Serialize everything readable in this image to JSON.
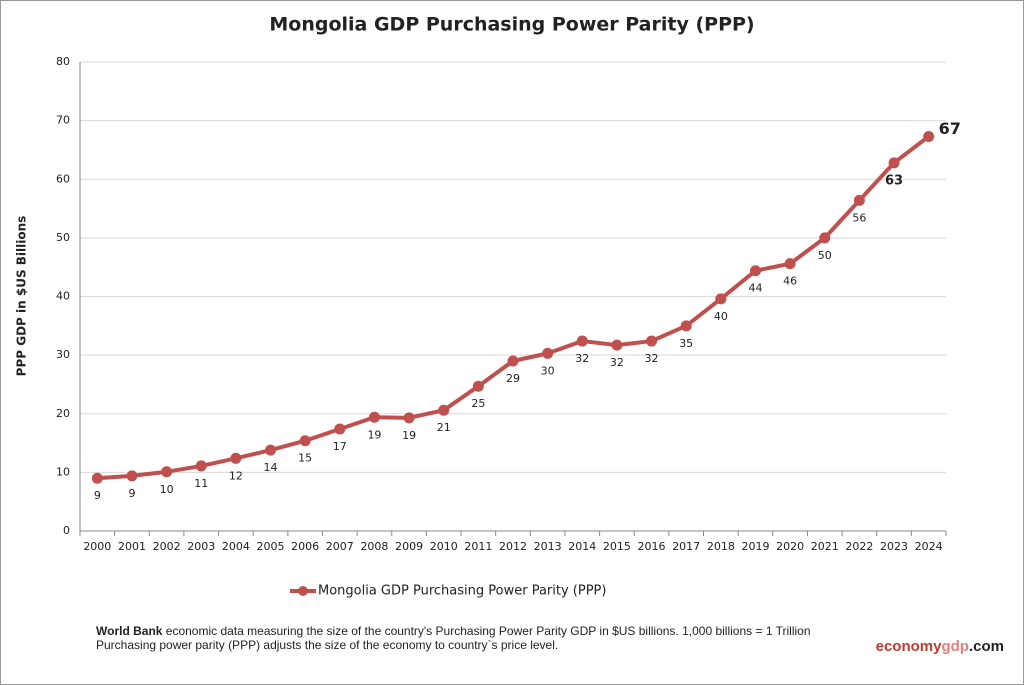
{
  "chart_data": {
    "type": "line",
    "title": "Mongolia GDP Purchasing Power Parity (PPP)",
    "y_label": "PPP GDP in $US Billions",
    "categories": [
      "2000",
      "2001",
      "2002",
      "2003",
      "2004",
      "2005",
      "2006",
      "2007",
      "2008",
      "2009",
      "2010",
      "2011",
      "2012",
      "2013",
      "2014",
      "2015",
      "2016",
      "2017",
      "2018",
      "2019",
      "2020",
      "2021",
      "2022",
      "2023",
      "2024"
    ],
    "series": [
      {
        "name": "Mongolia GDP Purchasing Power Parity (PPP)",
        "color": "#c0504d",
        "values": [
          9.0,
          9.4,
          10.1,
          11.1,
          12.4,
          13.8,
          15.4,
          17.4,
          19.4,
          19.3,
          20.6,
          24.7,
          29.0,
          30.3,
          32.4,
          31.7,
          32.4,
          35.0,
          39.6,
          44.4,
          45.6,
          50.0,
          56.4,
          62.8,
          67.3
        ],
        "value_labels": [
          "9",
          "9",
          "10",
          "11",
          "12",
          "14",
          "15",
          "17",
          "19",
          "19",
          "21",
          "25",
          "29",
          "30",
          "32",
          "32",
          "32",
          "35",
          "40",
          "44",
          "46",
          "50",
          "56",
          "63",
          "67"
        ]
      }
    ],
    "ylim": [
      0,
      80
    ],
    "yticks": [
      0,
      10,
      20,
      30,
      40,
      50,
      60,
      70,
      80
    ],
    "grid": true,
    "legend": "bottom",
    "footer": {
      "source": "World Bank",
      "line1": " economic data  measuring the size of the country's Purchasing Power Parity GDP in $US billions. 1,000 billions = 1 Trillion",
      "line2": "Purchasing power parity (PPP) adjusts the size of the economy to country`s price level."
    },
    "brand": [
      "economy",
      "gdp",
      ".com"
    ]
  }
}
